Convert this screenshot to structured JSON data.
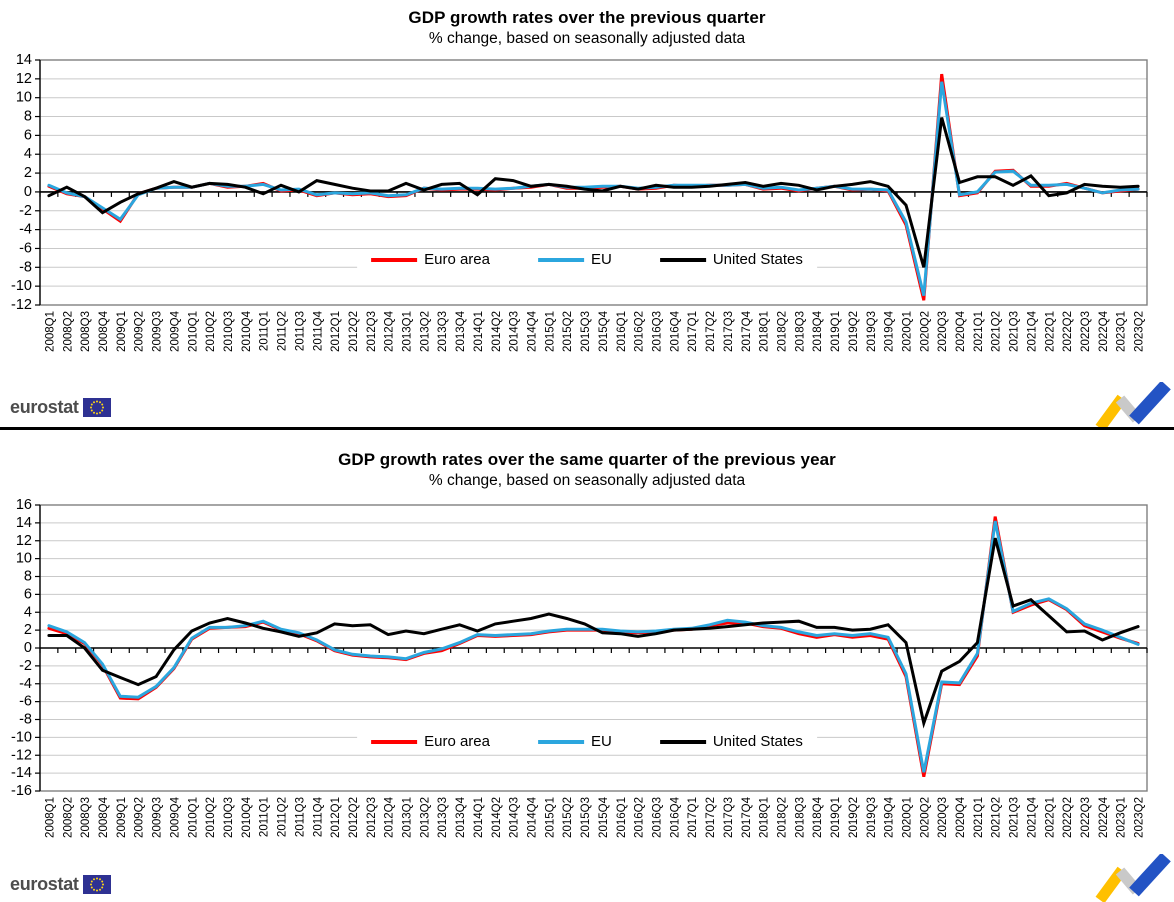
{
  "branding": {
    "wordmark": "eurostat",
    "eu_flag_icon": "eu-flag-icon",
    "trend_arrow_icon": "trend-arrow-logo",
    "colors": {
      "eu_flag_blue": "#2e3192",
      "star_yellow": "#ffd617",
      "arrow_yellow": "#ffc000",
      "arrow_gray": "#c9c9c9",
      "arrow_blue": "#2353c4"
    }
  },
  "chart_data": [
    {
      "type": "line",
      "title": "GDP growth rates over the previous quarter",
      "subtitle": "% change, based on seasonally adjusted data",
      "ylabel": "",
      "ylim": [
        -12,
        14
      ],
      "yticks": [
        14,
        12,
        10,
        8,
        6,
        4,
        2,
        0,
        -2,
        -4,
        -6,
        -8,
        -10,
        -12
      ],
      "grid": true,
      "legend_position": "inside-bottom-center",
      "categories": [
        "2008Q1",
        "2008Q2",
        "2008Q3",
        "2008Q4",
        "2009Q1",
        "2009Q2",
        "2009Q3",
        "2009Q4",
        "2010Q1",
        "2010Q2",
        "2010Q3",
        "2010Q4",
        "2011Q1",
        "2011Q2",
        "2011Q3",
        "2011Q4",
        "2012Q1",
        "2012Q2",
        "2012Q3",
        "2012Q4",
        "2013Q1",
        "2013Q2",
        "2013Q3",
        "2013Q4",
        "2014Q1",
        "2014Q2",
        "2014Q3",
        "2014Q4",
        "2015Q1",
        "2015Q2",
        "2015Q3",
        "2015Q4",
        "2016Q1",
        "2016Q2",
        "2016Q3",
        "2016Q4",
        "2017Q1",
        "2017Q2",
        "2017Q3",
        "2017Q4",
        "2018Q1",
        "2018Q2",
        "2018Q3",
        "2018Q4",
        "2019Q1",
        "2019Q2",
        "2019Q3",
        "2019Q4",
        "2020Q1",
        "2020Q2",
        "2020Q3",
        "2020Q4",
        "2021Q1",
        "2021Q2",
        "2021Q3",
        "2021Q4",
        "2022Q1",
        "2022Q2",
        "2022Q3",
        "2022Q4",
        "2023Q1",
        "2023Q2"
      ],
      "series": [
        {
          "name": "Euro area",
          "color": "#ff0000",
          "values": [
            0.6,
            -0.2,
            -0.5,
            -1.8,
            -3.1,
            -0.2,
            0.4,
            0.5,
            0.5,
            0.9,
            0.5,
            0.6,
            0.9,
            0.1,
            0.2,
            -0.4,
            -0.1,
            -0.3,
            -0.2,
            -0.5,
            -0.4,
            0.4,
            0.2,
            0.3,
            0.3,
            0.2,
            0.4,
            0.5,
            0.8,
            0.4,
            0.4,
            0.5,
            0.6,
            0.3,
            0.4,
            0.7,
            0.6,
            0.7,
            0.7,
            0.8,
            0.3,
            0.4,
            0.1,
            0.4,
            0.6,
            0.2,
            0.3,
            0.1,
            -3.5,
            -11.5,
            12.5,
            -0.4,
            -0.1,
            2.2,
            2.3,
            0.6,
            0.6,
            0.9,
            0.4,
            -0.1,
            0.1,
            0.3
          ]
        },
        {
          "name": "EU",
          "color": "#2ba6de",
          "values": [
            0.7,
            -0.1,
            -0.5,
            -1.7,
            -2.9,
            -0.3,
            0.4,
            0.5,
            0.5,
            0.9,
            0.6,
            0.6,
            0.8,
            0.2,
            0.3,
            -0.3,
            -0.1,
            -0.2,
            -0.1,
            -0.4,
            -0.3,
            0.4,
            0.3,
            0.4,
            0.4,
            0.3,
            0.4,
            0.6,
            0.8,
            0.5,
            0.5,
            0.6,
            0.6,
            0.4,
            0.5,
            0.7,
            0.7,
            0.7,
            0.7,
            0.8,
            0.4,
            0.5,
            0.2,
            0.4,
            0.6,
            0.3,
            0.3,
            0.2,
            -3.2,
            -11.0,
            11.7,
            -0.3,
            0.0,
            2.1,
            2.2,
            0.7,
            0.7,
            0.8,
            0.4,
            -0.1,
            0.2,
            0.3
          ]
        },
        {
          "name": "United States",
          "color": "#000000",
          "values": [
            -0.4,
            0.5,
            -0.5,
            -2.2,
            -1.1,
            -0.2,
            0.4,
            1.1,
            0.5,
            0.9,
            0.8,
            0.5,
            -0.2,
            0.7,
            0.0,
            1.2,
            0.8,
            0.4,
            0.1,
            0.1,
            0.9,
            0.2,
            0.8,
            0.9,
            -0.3,
            1.4,
            1.2,
            0.6,
            0.8,
            0.6,
            0.3,
            0.1,
            0.6,
            0.3,
            0.7,
            0.5,
            0.5,
            0.6,
            0.8,
            1.0,
            0.6,
            0.9,
            0.7,
            0.2,
            0.6,
            0.8,
            1.1,
            0.6,
            -1.4,
            -8.0,
            7.9,
            1.0,
            1.6,
            1.6,
            0.7,
            1.7,
            -0.4,
            -0.1,
            0.8,
            0.6,
            0.5,
            0.6
          ]
        }
      ]
    },
    {
      "type": "line",
      "title": "GDP growth rates over the same quarter of the previous year",
      "subtitle": "% change, based on seasonally adjusted data",
      "ylabel": "",
      "ylim": [
        -16,
        16
      ],
      "yticks": [
        16,
        14,
        12,
        10,
        8,
        6,
        4,
        2,
        0,
        -2,
        -4,
        -6,
        -8,
        -10,
        -12,
        -14,
        -16
      ],
      "grid": true,
      "legend_position": "inside-bottom-center",
      "categories": [
        "2008Q1",
        "2008Q2",
        "2008Q3",
        "2008Q4",
        "2009Q1",
        "2009Q2",
        "2009Q3",
        "2009Q4",
        "2010Q1",
        "2010Q2",
        "2010Q3",
        "2010Q4",
        "2011Q1",
        "2011Q2",
        "2011Q3",
        "2011Q4",
        "2012Q1",
        "2012Q2",
        "2012Q3",
        "2012Q4",
        "2013Q1",
        "2013Q2",
        "2013Q3",
        "2013Q4",
        "2014Q1",
        "2014Q2",
        "2014Q3",
        "2014Q4",
        "2015Q1",
        "2015Q2",
        "2015Q3",
        "2015Q4",
        "2016Q1",
        "2016Q2",
        "2016Q3",
        "2016Q4",
        "2017Q1",
        "2017Q2",
        "2017Q3",
        "2017Q4",
        "2018Q1",
        "2018Q2",
        "2018Q3",
        "2018Q4",
        "2019Q1",
        "2019Q2",
        "2019Q3",
        "2019Q4",
        "2020Q1",
        "2020Q2",
        "2020Q3",
        "2020Q4",
        "2021Q1",
        "2021Q2",
        "2021Q3",
        "2021Q4",
        "2022Q1",
        "2022Q2",
        "2022Q3",
        "2022Q4",
        "2023Q1",
        "2023Q2"
      ],
      "series": [
        {
          "name": "Euro area",
          "color": "#ff0000",
          "values": [
            2.2,
            1.6,
            0.5,
            -1.9,
            -5.6,
            -5.7,
            -4.4,
            -2.3,
            1.0,
            2.2,
            2.3,
            2.4,
            2.9,
            2.0,
            1.6,
            0.8,
            -0.3,
            -0.8,
            -1.0,
            -1.1,
            -1.3,
            -0.6,
            -0.3,
            0.5,
            1.4,
            1.3,
            1.4,
            1.5,
            1.8,
            2.0,
            2.0,
            2.0,
            1.8,
            1.7,
            1.8,
            2.0,
            2.1,
            2.5,
            2.8,
            2.8,
            2.4,
            2.2,
            1.6,
            1.2,
            1.5,
            1.2,
            1.4,
            1.0,
            -3.2,
            -14.4,
            -4.0,
            -4.1,
            -0.9,
            14.7,
            4.0,
            4.8,
            5.4,
            4.3,
            2.5,
            1.8,
            1.1,
            0.5
          ]
        },
        {
          "name": "EU",
          "color": "#2ba6de",
          "values": [
            2.5,
            1.8,
            0.6,
            -1.8,
            -5.4,
            -5.5,
            -4.3,
            -2.2,
            1.1,
            2.3,
            2.3,
            2.5,
            3.0,
            2.1,
            1.7,
            0.9,
            -0.2,
            -0.7,
            -0.9,
            -1.0,
            -1.2,
            -0.5,
            -0.1,
            0.6,
            1.5,
            1.4,
            1.5,
            1.6,
            1.9,
            2.1,
            2.1,
            2.1,
            1.9,
            1.8,
            1.9,
            2.1,
            2.2,
            2.6,
            3.1,
            2.9,
            2.5,
            2.3,
            1.8,
            1.4,
            1.6,
            1.4,
            1.6,
            1.2,
            -2.9,
            -13.9,
            -3.8,
            -3.9,
            -0.6,
            14.2,
            4.1,
            5.0,
            5.5,
            4.4,
            2.7,
            2.0,
            1.2,
            0.4
          ]
        },
        {
          "name": "United States",
          "color": "#000000",
          "values": [
            1.4,
            1.4,
            0.0,
            -2.5,
            -3.3,
            -4.1,
            -3.2,
            -0.2,
            1.9,
            2.8,
            3.3,
            2.8,
            2.2,
            1.8,
            1.3,
            1.7,
            2.7,
            2.5,
            2.6,
            1.5,
            1.9,
            1.6,
            2.1,
            2.6,
            1.9,
            2.7,
            3.0,
            3.3,
            3.8,
            3.3,
            2.7,
            1.7,
            1.6,
            1.3,
            1.6,
            2.0,
            2.1,
            2.2,
            2.4,
            2.6,
            2.8,
            2.9,
            3.0,
            2.3,
            2.3,
            2.0,
            2.1,
            2.6,
            0.6,
            -8.4,
            -2.6,
            -1.5,
            0.6,
            12.3,
            4.7,
            5.4,
            3.6,
            1.8,
            1.9,
            0.9,
            1.7,
            2.4
          ]
        }
      ]
    }
  ]
}
